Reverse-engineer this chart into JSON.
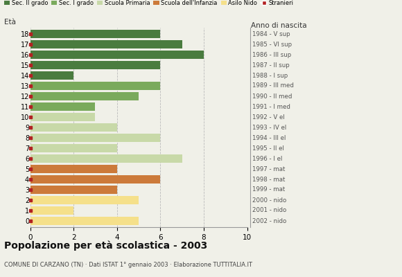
{
  "ages": [
    18,
    17,
    16,
    15,
    14,
    13,
    12,
    11,
    10,
    9,
    8,
    7,
    6,
    5,
    4,
    3,
    2,
    1,
    0
  ],
  "years": [
    "1984 - V sup",
    "1985 - VI sup",
    "1986 - III sup",
    "1987 - II sup",
    "1988 - I sup",
    "1989 - III med",
    "1990 - II med",
    "1991 - I med",
    "1992 - V el",
    "1993 - IV el",
    "1994 - III el",
    "1995 - II el",
    "1996 - I el",
    "1997 - mat",
    "1998 - mat",
    "1999 - mat",
    "2000 - nido",
    "2001 - nido",
    "2002 - nido"
  ],
  "values": [
    6,
    7,
    8,
    6,
    2,
    6,
    5,
    3,
    3,
    4,
    6,
    4,
    7,
    4,
    6,
    4,
    5,
    2,
    5
  ],
  "bar_colors": [
    "#4a7c3f",
    "#4a7c3f",
    "#4a7c3f",
    "#4a7c3f",
    "#4a7c3f",
    "#7aaa5c",
    "#7aaa5c",
    "#7aaa5c",
    "#c8d9a8",
    "#c8d9a8",
    "#c8d9a8",
    "#c8d9a8",
    "#c8d9a8",
    "#cc7a3a",
    "#cc7a3a",
    "#cc7a3a",
    "#f5e08a",
    "#f5e08a",
    "#f5e08a"
  ],
  "stranieri_color": "#b22222",
  "legend_labels": [
    "Sec. II grado",
    "Sec. I grado",
    "Scuola Primaria",
    "Scuola dell'Infanzia",
    "Asilo Nido",
    "Stranieri"
  ],
  "legend_colors": [
    "#4a7c3f",
    "#7aaa5c",
    "#c8d9a8",
    "#cc7a3a",
    "#f5e08a",
    "#b22222"
  ],
  "title": "Popolazione per età scolastica - 2003",
  "subtitle": "COMUNE DI CARZANO (TN) · Dati ISTAT 1° gennaio 2003 · Elaborazione TUTTITALIA.IT",
  "label_eta": "Età",
  "label_anno": "Anno di nascita",
  "xlim": [
    0,
    10
  ],
  "xticks": [
    0,
    2,
    4,
    6,
    8,
    10
  ],
  "bar_height": 0.75,
  "background_color": "#f0f0e8",
  "grid_color": "#bbbbbb"
}
